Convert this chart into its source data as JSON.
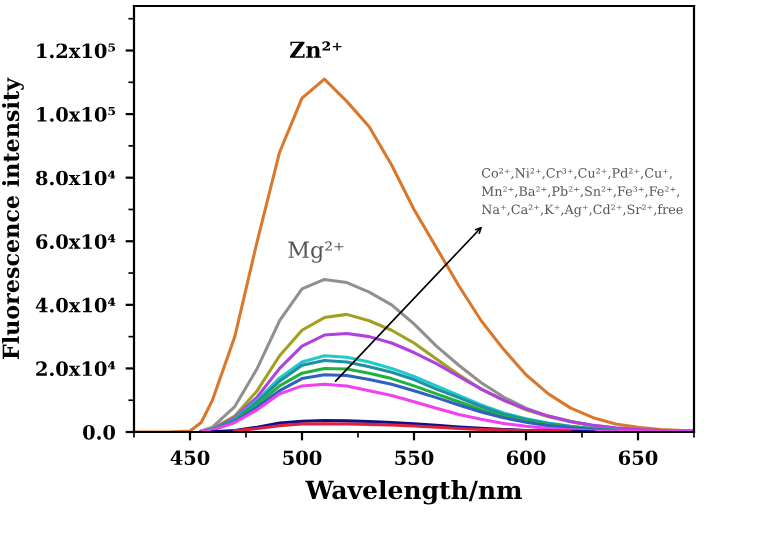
{
  "chart_data": {
    "type": "line",
    "xlabel": "Wavelength/nm",
    "ylabel": "Fluorescence intensity",
    "x": [
      425,
      440,
      450,
      455,
      460,
      470,
      480,
      490,
      500,
      510,
      520,
      530,
      540,
      550,
      560,
      570,
      580,
      590,
      600,
      610,
      620,
      630,
      640,
      650,
      660,
      675
    ],
    "series": [
      {
        "name": "Zn²⁺",
        "color": "#d9782d",
        "values": [
          0,
          0,
          300,
          3000,
          10000,
          30000,
          60000,
          88000,
          105000,
          111000,
          104000,
          96000,
          84000,
          70000,
          58000,
          46000,
          35000,
          26000,
          18000,
          12000,
          7500,
          4500,
          2500,
          1500,
          800,
          300
        ]
      },
      {
        "name": "Mg²⁺",
        "color": "#909090",
        "values": [
          null,
          null,
          null,
          300,
          1500,
          8000,
          20000,
          35000,
          45000,
          48000,
          47000,
          44000,
          40000,
          34000,
          27000,
          21000,
          15500,
          11000,
          7500,
          5000,
          3300,
          2000,
          1200,
          700,
          400,
          200
        ]
      },
      {
        "color": "#a0a020",
        "values": [
          null,
          null,
          null,
          200,
          1000,
          5000,
          13000,
          24000,
          32000,
          36000,
          37000,
          35000,
          32000,
          28000,
          23000,
          18000,
          13500,
          10000,
          7000,
          4800,
          3200,
          2000,
          1200,
          700,
          400,
          200
        ]
      },
      {
        "color": "#b040e0",
        "values": [
          null,
          null,
          null,
          200,
          900,
          4500,
          11000,
          20000,
          27000,
          30500,
          31000,
          30000,
          28000,
          25000,
          21500,
          17500,
          13500,
          10000,
          7200,
          5000,
          3300,
          2100,
          1300,
          800,
          500,
          200
        ]
      },
      {
        "color": "#20c8d0",
        "values": [
          null,
          null,
          null,
          200,
          800,
          4000,
          10000,
          17000,
          22000,
          24000,
          23500,
          22000,
          20000,
          17500,
          14500,
          11500,
          8500,
          6000,
          4200,
          2800,
          1800,
          1100,
          700,
          null,
          null,
          null
        ]
      },
      {
        "color": "#2090a0",
        "values": [
          null,
          null,
          null,
          100,
          800,
          3800,
          9500,
          16000,
          21000,
          22500,
          22000,
          20500,
          18800,
          16500,
          13500,
          10800,
          8000,
          5600,
          3900,
          2600,
          1700,
          1000,
          600,
          null,
          null,
          null
        ]
      },
      {
        "color": "#20b040",
        "values": [
          null,
          null,
          null,
          100,
          700,
          3500,
          8500,
          14500,
          18500,
          20000,
          19800,
          18500,
          16800,
          14500,
          12000,
          9500,
          7000,
          5000,
          3500,
          2300,
          1500,
          900,
          500,
          null,
          null,
          null
        ]
      },
      {
        "color": "#3060c0",
        "values": [
          null,
          null,
          null,
          100,
          600,
          3200,
          7800,
          13000,
          16800,
          18000,
          17800,
          16500,
          15000,
          13000,
          10800,
          8500,
          6300,
          4500,
          3100,
          2000,
          1300,
          800,
          500,
          null,
          null,
          null
        ]
      },
      {
        "color": "#f040f0",
        "values": [
          null,
          null,
          null,
          100,
          600,
          3000,
          7000,
          12000,
          14500,
          15000,
          14500,
          13000,
          11500,
          9500,
          7500,
          5500,
          4000,
          2700,
          1800,
          1100,
          700,
          400,
          300,
          200,
          100,
          0
        ]
      },
      {
        "color": "#101080",
        "values": [
          null,
          null,
          null,
          null,
          100,
          500,
          1500,
          2800,
          3400,
          3600,
          3500,
          3300,
          3000,
          2600,
          2100,
          1600,
          1200,
          800,
          500,
          300,
          200,
          100,
          null,
          null,
          null,
          null
        ]
      },
      {
        "color": "#e02040",
        "values": [
          null,
          null,
          null,
          null,
          null,
          400,
          1100,
          2000,
          2500,
          2600,
          2500,
          2400,
          2200,
          1900,
          1500,
          1100,
          800,
          600,
          400,
          200,
          100,
          null,
          null,
          null,
          null,
          null
        ]
      }
    ],
    "annotations": [
      {
        "text": "Co²⁺,Ni²⁺,Cr³⁺,Cu²⁺,Pd²⁺,Cu⁺,\nMn²⁺,Ba²⁺,Pb²⁺,Sn²⁺,Fe³⁺,Fe²⁺,\nNa⁺,Ca²⁺,K⁺,Ag⁺,Cd²⁺,Sr²⁺,free",
        "x": 515,
        "y": 16000
      }
    ],
    "xlim": [
      425,
      675
    ],
    "xticks": [
      450,
      500,
      550,
      600,
      650
    ],
    "ylim": [
      0,
      134000
    ],
    "yticks": [
      {
        "value": 0,
        "label": "0.0"
      },
      {
        "value": 20000,
        "label": "2.0x10⁴"
      },
      {
        "value": 40000,
        "label": "4.0x10⁴"
      },
      {
        "value": 60000,
        "label": "6.0x10⁴"
      },
      {
        "value": 80000,
        "label": "8.0x10⁴"
      },
      {
        "value": 100000,
        "label": "1.0x10⁵"
      },
      {
        "value": 120000,
        "label": "1.2x10⁵"
      }
    ],
    "grid": false,
    "legend": false
  }
}
